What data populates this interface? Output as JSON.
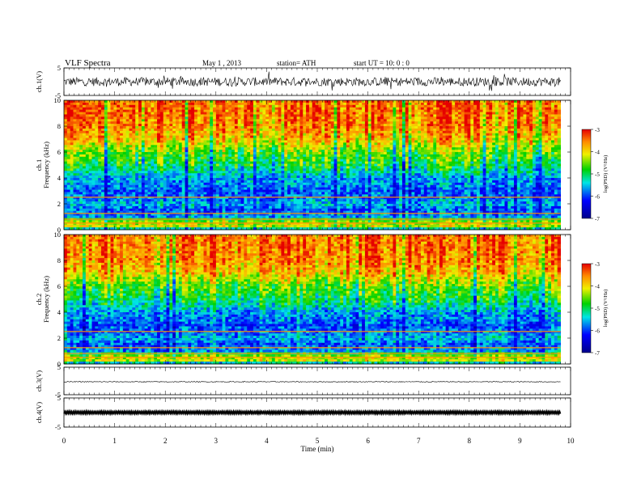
{
  "header": {
    "title": "VLF  Spectra",
    "date": "May 1  , 2013",
    "station": "station= ATH",
    "start": "start  UT  =     10: 0  : 0"
  },
  "chart_data": {
    "type": "heatmap",
    "xlabel": "Time  (min)",
    "x_ticks": [
      0,
      1,
      2,
      3,
      4,
      5,
      6,
      7,
      8,
      9,
      10
    ],
    "xlim": [
      0,
      10
    ],
    "data_end_min": 9.8,
    "panels": [
      {
        "kind": "waveform",
        "ylabel": "ch.1(V)",
        "ylim": [
          -5,
          5
        ],
        "y_ticks": [
          5,
          -5
        ],
        "amplitude": 1.6,
        "style": "noisy"
      },
      {
        "kind": "spectrogram",
        "ylabel_channel": "ch.1",
        "ylabel": "Frequency  (kHz)",
        "ylim": [
          0,
          10
        ],
        "y_ticks": [
          0,
          2,
          4,
          6,
          8,
          10
        ],
        "colorbar": {
          "label": "log(PSD) (V²/Hz)",
          "range": [
            -7,
            -3
          ],
          "ticks": [
            -3,
            -4,
            -5,
            -6,
            -7
          ]
        }
      },
      {
        "kind": "spectrogram",
        "ylabel_channel": "ch.2",
        "ylabel": "Frequency  (kHz)",
        "ylim": [
          0,
          10
        ],
        "y_ticks": [
          0,
          2,
          4,
          6,
          8,
          10
        ],
        "colorbar": {
          "label": "log(PSD) (V²/Hz)",
          "range": [
            -7,
            -3
          ],
          "ticks": [
            -3,
            -4,
            -5,
            -6,
            -7
          ]
        }
      },
      {
        "kind": "waveform",
        "ylabel": "ch.3(V)",
        "ylim": [
          -5,
          5
        ],
        "y_ticks": [
          5,
          -5
        ],
        "amplitude": 0.15,
        "style": "quiet"
      },
      {
        "kind": "waveform",
        "ylabel": "ch.4(V)",
        "ylim": [
          -5,
          5
        ],
        "y_ticks": [
          5,
          -5
        ],
        "amplitude": 0.45,
        "style": "dense"
      }
    ],
    "spectrogram_profile": {
      "description": "approximate mean log(PSD) versus frequency",
      "freq_khz": [
        0.0,
        0.3,
        0.7,
        1.0,
        1.5,
        2.0,
        2.5,
        3.0,
        3.5,
        4.0,
        4.5,
        5.0,
        5.5,
        6.0,
        6.5,
        7.0,
        8.0,
        9.0,
        10.0
      ],
      "log_psd": [
        -5.8,
        -4.0,
        -4.5,
        -5.6,
        -5.9,
        -5.5,
        -5.8,
        -5.9,
        -5.7,
        -5.6,
        -5.2,
        -4.9,
        -4.7,
        -4.5,
        -4.2,
        -3.8,
        -3.5,
        -3.4,
        -3.4
      ]
    }
  }
}
